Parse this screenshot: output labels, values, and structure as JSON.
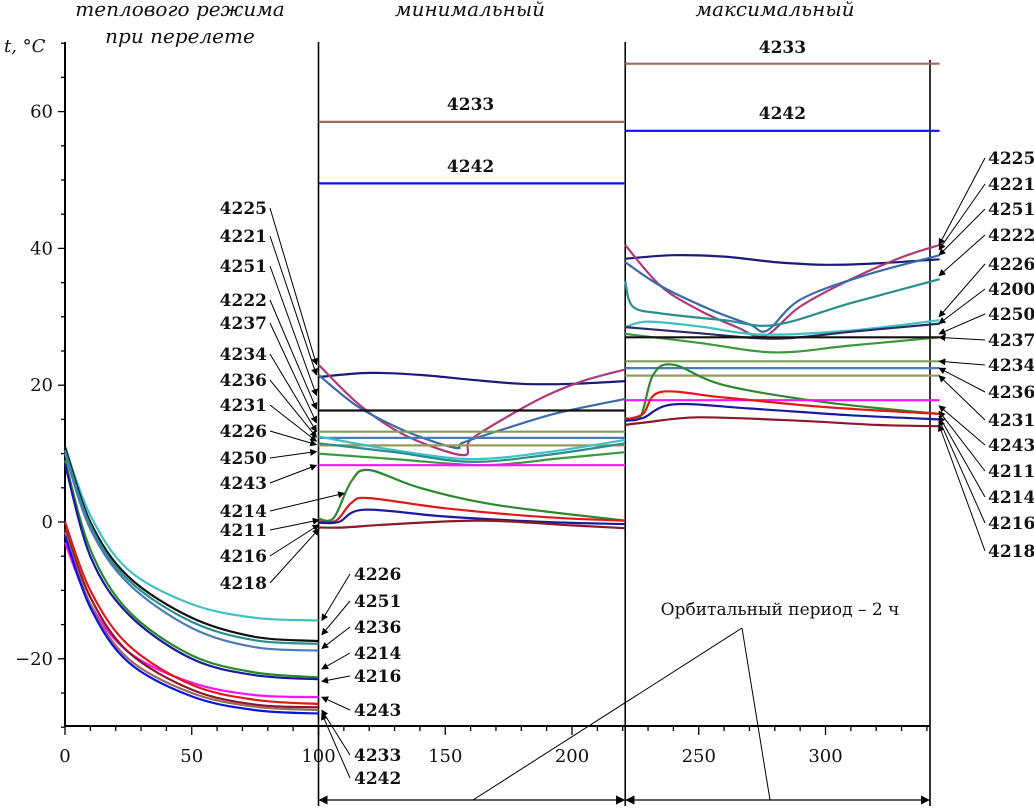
{
  "chart_data": {
    "type": "line",
    "phase_headers": [
      [
        "теплового режима",
        "при перелете"
      ],
      [
        "минимальный"
      ],
      [
        "максимальный"
      ]
    ],
    "ylabel": "t, °C",
    "xlim": [
      0,
      345
    ],
    "ylim": [
      -30,
      70
    ],
    "xticks": [
      0,
      50,
      100,
      150,
      200,
      250,
      300
    ],
    "yticks": [
      -20,
      0,
      20,
      40,
      60
    ],
    "xtick_labels": [
      "0",
      "50",
      "100",
      "150",
      "200",
      "250",
      "300"
    ],
    "ytick_labels": [
      "−20",
      "0",
      "20",
      "40",
      "60"
    ],
    "phase_boundaries": [
      100,
      221
    ],
    "orbital_period_label": "Орбитальный период – 2 ч",
    "colors": {
      "4233": "#9a6a5a",
      "4242": "#0a14e0",
      "4225": "#b03a78",
      "4221": "#3a6aa8",
      "4251": "#2a8e8e",
      "4222": "#1a1a7a",
      "4237": "#111111",
      "4234": "#7aa05a",
      "4236": "#4a7ab8",
      "4231": "#9a9a5a",
      "4226": "#40c0c0",
      "4250": "#3a9a3a",
      "4243": "#ff10ff",
      "4214": "#2a8a2a",
      "4211": "#e01818",
      "4216": "#1a1aa0",
      "4218": "#8a1a2a",
      "4200": "#2a2a6a"
    },
    "flight_series": [
      {
        "id": "4226",
        "x": [
          0,
          10,
          25,
          50,
          75,
          100
        ],
        "y": [
          11,
          1,
          -7,
          -12,
          -14,
          -14.4
        ]
      },
      {
        "id": "4237",
        "x": [
          0,
          10,
          25,
          50,
          75,
          100
        ],
        "y": [
          11,
          0,
          -8,
          -14,
          -16.8,
          -17.4
        ]
      },
      {
        "id": "4251",
        "x": [
          0,
          10,
          25,
          50,
          75,
          100
        ],
        "y": [
          10.5,
          -0.5,
          -8.5,
          -14.6,
          -17.3,
          -17.8
        ]
      },
      {
        "id": "4236",
        "x": [
          0,
          10,
          25,
          50,
          75,
          100
        ],
        "y": [
          10,
          -1,
          -9,
          -15.5,
          -18.3,
          -18.8
        ]
      },
      {
        "id": "4214",
        "x": [
          0,
          10,
          25,
          50,
          75,
          100
        ],
        "y": [
          9,
          -4,
          -13,
          -19.5,
          -22,
          -22.7
        ]
      },
      {
        "id": "4216",
        "x": [
          0,
          10,
          25,
          50,
          75,
          100
        ],
        "y": [
          8.5,
          -5,
          -13.5,
          -20,
          -22.4,
          -23
        ]
      },
      {
        "id": "4243",
        "x": [
          0,
          10,
          25,
          50,
          75,
          100
        ],
        "y": [
          -3,
          -12,
          -19,
          -23.5,
          -25.3,
          -25.6
        ]
      },
      {
        "id": "4211",
        "x": [
          0,
          10,
          25,
          50,
          75,
          100
        ],
        "y": [
          0,
          -10,
          -18,
          -23.8,
          -26,
          -26.6
        ]
      },
      {
        "id": "4218",
        "x": [
          0,
          10,
          25,
          50,
          75,
          100
        ],
        "y": [
          -1,
          -11,
          -19,
          -24.5,
          -26.7,
          -27.1
        ]
      },
      {
        "id": "4233",
        "x": [
          0,
          10,
          25,
          50,
          75,
          100
        ],
        "y": [
          -1.5,
          -12,
          -20,
          -25,
          -27,
          -27.5
        ]
      },
      {
        "id": "4242",
        "x": [
          0,
          10,
          25,
          50,
          75,
          100
        ],
        "y": [
          -2,
          -12.5,
          -20.5,
          -25.5,
          -27.5,
          -28
        ]
      }
    ],
    "min_series": [
      {
        "id": "4233",
        "x": [
          100,
          221
        ],
        "y": [
          58.5,
          58.5
        ]
      },
      {
        "id": "4242",
        "x": [
          100,
          221
        ],
        "y": [
          49.5,
          49.5
        ]
      },
      {
        "id": "4222",
        "x": [
          100,
          120,
          140,
          160,
          180,
          200,
          221
        ],
        "y": [
          21.2,
          21.8,
          21.5,
          20.8,
          20.2,
          20.2,
          20.6
        ]
      },
      {
        "id": "4225",
        "x": [
          100,
          115,
          130,
          145,
          158,
          160,
          175,
          190,
          205,
          221
        ],
        "y": [
          23,
          17.5,
          13.5,
          11,
          9.8,
          12,
          15.5,
          18.5,
          20.7,
          22.3
        ]
      },
      {
        "id": "4221",
        "x": [
          100,
          115,
          130,
          145,
          155,
          157,
          175,
          195,
          221
        ],
        "y": [
          21.5,
          17,
          14,
          11.8,
          10.8,
          11.6,
          13.8,
          16,
          18
        ]
      },
      {
        "id": "4237",
        "x": [
          100,
          221
        ],
        "y": [
          16.3,
          16.3
        ]
      },
      {
        "id": "4234",
        "x": [
          100,
          221
        ],
        "y": [
          13.2,
          13.2
        ]
      },
      {
        "id": "4236",
        "x": [
          100,
          221
        ],
        "y": [
          12.3,
          12.3
        ]
      },
      {
        "id": "4231",
        "x": [
          100,
          221
        ],
        "y": [
          11.2,
          11.2
        ]
      },
      {
        "id": "4226",
        "x": [
          100,
          130,
          160,
          190,
          221
        ],
        "y": [
          12.5,
          10.5,
          9.2,
          10.2,
          12
        ]
      },
      {
        "id": "4251",
        "x": [
          100,
          130,
          160,
          190,
          221
        ],
        "y": [
          11.5,
          10.2,
          8.8,
          9.8,
          11.5
        ]
      },
      {
        "id": "4250",
        "x": [
          100,
          130,
          165,
          195,
          221
        ],
        "y": [
          10,
          9.2,
          8.3,
          9.3,
          10.2
        ]
      },
      {
        "id": "4243",
        "x": [
          100,
          221
        ],
        "y": [
          8.3,
          8.3
        ]
      },
      {
        "id": "4214",
        "x": [
          100,
          106,
          113,
          120,
          140,
          170,
          221
        ],
        "y": [
          0.5,
          0.6,
          6,
          7.6,
          5,
          2.5,
          0.2
        ]
      },
      {
        "id": "4211",
        "x": [
          100,
          107,
          113,
          120,
          150,
          190,
          221
        ],
        "y": [
          0.1,
          0.2,
          2.8,
          3.5,
          2,
          0.7,
          0.2
        ]
      },
      {
        "id": "4216",
        "x": [
          100,
          108,
          118,
          150,
          190,
          221
        ],
        "y": [
          -0.1,
          0,
          1.8,
          0.8,
          0,
          -0.3
        ]
      },
      {
        "id": "4218",
        "x": [
          100,
          110,
          130,
          165,
          200,
          221
        ],
        "y": [
          -0.8,
          -0.8,
          -0.3,
          0.2,
          -0.5,
          -0.9
        ]
      }
    ],
    "max_series": [
      {
        "id": "4233",
        "x": [
          221,
          345
        ],
        "y": [
          67,
          67
        ]
      },
      {
        "id": "4242",
        "x": [
          221,
          345
        ],
        "y": [
          57.2,
          57.2
        ]
      },
      {
        "id": "4222",
        "x": [
          221,
          240,
          260,
          280,
          300,
          320,
          345
        ],
        "y": [
          38.5,
          39,
          38.8,
          38,
          37.6,
          37.8,
          38.4
        ]
      },
      {
        "id": "4225",
        "x": [
          221,
          235,
          250,
          265,
          276,
          290,
          310,
          330,
          345
        ],
        "y": [
          40.5,
          34.5,
          31,
          28.5,
          27.2,
          31.5,
          35.5,
          38.7,
          40.5
        ]
      },
      {
        "id": "4221",
        "x": [
          221,
          235,
          255,
          270,
          277,
          290,
          315,
          345
        ],
        "y": [
          38,
          34.5,
          31,
          28.9,
          28,
          32.5,
          36,
          39
        ]
      },
      {
        "id": "4251",
        "x": [
          221,
          224,
          235,
          260,
          280,
          310,
          345
        ],
        "y": [
          35.2,
          31.5,
          30.5,
          29.5,
          28.8,
          32,
          35.5
        ]
      },
      {
        "id": "4226",
        "x": [
          221,
          230,
          250,
          275,
          310,
          345
        ],
        "y": [
          28.5,
          29.3,
          28.6,
          27.4,
          28,
          29.5
        ]
      },
      {
        "id": "4200",
        "x": [
          221,
          250,
          280,
          310,
          345
        ],
        "y": [
          28.5,
          27.6,
          26.8,
          27.8,
          29
        ]
      },
      {
        "id": "4250",
        "x": [
          221,
          250,
          280,
          310,
          345
        ],
        "y": [
          27.5,
          26.2,
          24.8,
          25.8,
          27
        ]
      },
      {
        "id": "4237",
        "x": [
          221,
          345
        ],
        "y": [
          27,
          27
        ]
      },
      {
        "id": "4234",
        "x": [
          221,
          345
        ],
        "y": [
          23.5,
          23.5
        ]
      },
      {
        "id": "4236",
        "x": [
          221,
          345
        ],
        "y": [
          22.5,
          22.5
        ]
      },
      {
        "id": "4231",
        "x": [
          221,
          345
        ],
        "y": [
          21.4,
          21.4
        ]
      },
      {
        "id": "4214",
        "x": [
          221,
          227,
          232,
          240,
          260,
          300,
          345
        ],
        "y": [
          15.2,
          15.4,
          21.5,
          23,
          20,
          17.5,
          15.8
        ]
      },
      {
        "id": "4243",
        "x": [
          221,
          345
        ],
        "y": [
          17.8,
          17.8
        ]
      },
      {
        "id": "4211",
        "x": [
          221,
          228,
          235,
          260,
          300,
          345
        ],
        "y": [
          15,
          15.8,
          19,
          18.2,
          16.8,
          15.8
        ]
      },
      {
        "id": "4216",
        "x": [
          221,
          228,
          240,
          270,
          310,
          345
        ],
        "y": [
          14.8,
          15.2,
          17.2,
          16.6,
          15.6,
          15
        ]
      },
      {
        "id": "4218",
        "x": [
          221,
          230,
          250,
          290,
          320,
          345
        ],
        "y": [
          14.2,
          14.6,
          15.3,
          14.8,
          14.2,
          14
        ]
      }
    ],
    "inline_labels": [
      {
        "text": "4233",
        "x": 160,
        "y": 60.2
      },
      {
        "text": "4242",
        "x": 160,
        "y": 51.2
      },
      {
        "text": "4233",
        "x": 283,
        "y": 68.6
      },
      {
        "text": "4242",
        "x": 283,
        "y": 58.9
      }
    ],
    "left_mid_labels": [
      "4225",
      "4221",
      "4251",
      "4222",
      "4237",
      "4234",
      "4236",
      "4231",
      "4226",
      "4250",
      "4243",
      "4214",
      "4211",
      "4216",
      "4218"
    ],
    "left_low_labels": [
      "4226",
      "4251",
      "4236",
      "4214",
      "4216",
      "4243",
      "4233",
      "4242"
    ],
    "right_labels": [
      "4225",
      "4221",
      "4251",
      "4222",
      "4226",
      "4200",
      "4250",
      "4237",
      "4234",
      "4236",
      "4231",
      "4243",
      "4211",
      "4214",
      "4216",
      "4218"
    ]
  }
}
